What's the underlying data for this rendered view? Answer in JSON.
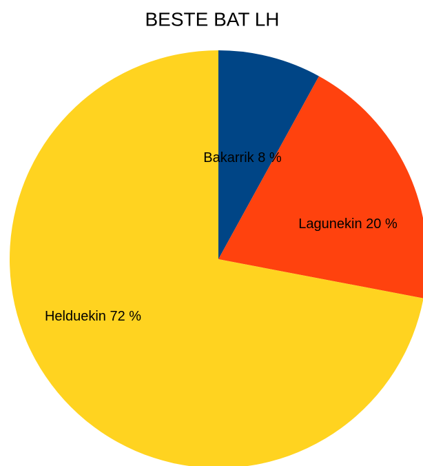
{
  "chart_data": {
    "type": "pie",
    "title": "BESTE BAT LH",
    "categories": [
      "Bakarrik",
      "Lagunekin",
      "Helduekin"
    ],
    "values": [
      8,
      20,
      72
    ],
    "value_labels": [
      "8 %",
      "20 %",
      "72 %"
    ],
    "colors": [
      "#004586",
      "#ff420e",
      "#ffd320"
    ]
  }
}
